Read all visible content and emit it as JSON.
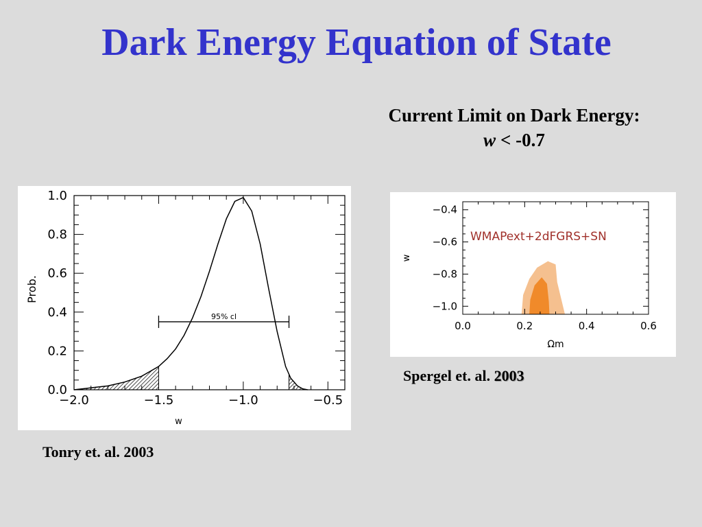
{
  "slide": {
    "title": "Dark Energy Equation of State",
    "limit_heading": "Current Limit on Dark Energy:",
    "limit_var": "w",
    "limit_rest": " < -0.7",
    "caption_left": "Tonry et. al. 2003",
    "caption_right_prefix": "Spergel et. al. ",
    "caption_right_year": "2003"
  },
  "colors": {
    "title": "#3333cc",
    "background": "#dcdcdc",
    "outer_contour": "#f5c08f",
    "inner_contour": "#f08a2a",
    "legend_text": "#a0302a"
  },
  "chart_data": [
    {
      "type": "line",
      "xlabel": "w",
      "ylabel": "Prob.",
      "xlim": [
        -2.0,
        -0.4
      ],
      "ylim": [
        0.0,
        1.0
      ],
      "x_ticks": [
        "−2.0",
        "−1.5",
        "−1.0",
        "−0.5"
      ],
      "x_tick_values": [
        -2.0,
        -1.5,
        -1.0,
        -0.5
      ],
      "y_ticks": [
        "0.0",
        "0.2",
        "0.4",
        "0.6",
        "0.8",
        "1.0"
      ],
      "y_tick_values": [
        0.0,
        0.2,
        0.4,
        0.6,
        0.8,
        1.0
      ],
      "series": [
        {
          "x": [
            -2.0,
            -1.9,
            -1.8,
            -1.7,
            -1.6,
            -1.55,
            -1.5,
            -1.45,
            -1.4,
            -1.35,
            -1.3,
            -1.25,
            -1.2,
            -1.15,
            -1.1,
            -1.05,
            -1.0,
            -0.95,
            -0.9,
            -0.85,
            -0.8,
            -0.75,
            -0.72,
            -0.68,
            -0.65,
            -0.62
          ],
          "values": [
            0.0,
            0.01,
            0.02,
            0.04,
            0.07,
            0.095,
            0.12,
            0.16,
            0.21,
            0.28,
            0.37,
            0.48,
            0.61,
            0.75,
            0.88,
            0.97,
            0.99,
            0.92,
            0.75,
            0.52,
            0.3,
            0.12,
            0.06,
            0.02,
            0.005,
            0.0
          ]
        }
      ],
      "annotation": {
        "label": "95% cl",
        "x_range": [
          -1.5,
          -0.73
        ],
        "y": 0.35
      },
      "shaded_tails": [
        [
          -2.0,
          -1.5
        ],
        [
          -0.73,
          -0.6
        ]
      ]
    },
    {
      "type": "contour",
      "legend": "WMAPext+2dFGRS+SN",
      "xlabel": "Ωm",
      "ylabel": "w",
      "xlim": [
        0.0,
        0.6
      ],
      "ylim": [
        -1.05,
        -0.35
      ],
      "x_ticks": [
        "0.0",
        "0.2",
        "0.4",
        "0.6"
      ],
      "x_tick_values": [
        0.0,
        0.2,
        0.4,
        0.6
      ],
      "y_ticks": [
        "−0.4",
        "−0.6",
        "−0.8",
        "−1.0"
      ],
      "y_tick_values": [
        -0.4,
        -0.6,
        -0.8,
        -1.0
      ],
      "outer_region": [
        [
          0.19,
          -1.05
        ],
        [
          0.195,
          -0.93
        ],
        [
          0.215,
          -0.83
        ],
        [
          0.24,
          -0.76
        ],
        [
          0.275,
          -0.72
        ],
        [
          0.3,
          -0.74
        ],
        [
          0.305,
          -0.85
        ],
        [
          0.32,
          -0.97
        ],
        [
          0.33,
          -1.05
        ]
      ],
      "inner_region": [
        [
          0.215,
          -1.05
        ],
        [
          0.218,
          -0.96
        ],
        [
          0.232,
          -0.87
        ],
        [
          0.255,
          -0.82
        ],
        [
          0.272,
          -0.86
        ],
        [
          0.278,
          -0.97
        ],
        [
          0.28,
          -1.05
        ]
      ]
    }
  ]
}
